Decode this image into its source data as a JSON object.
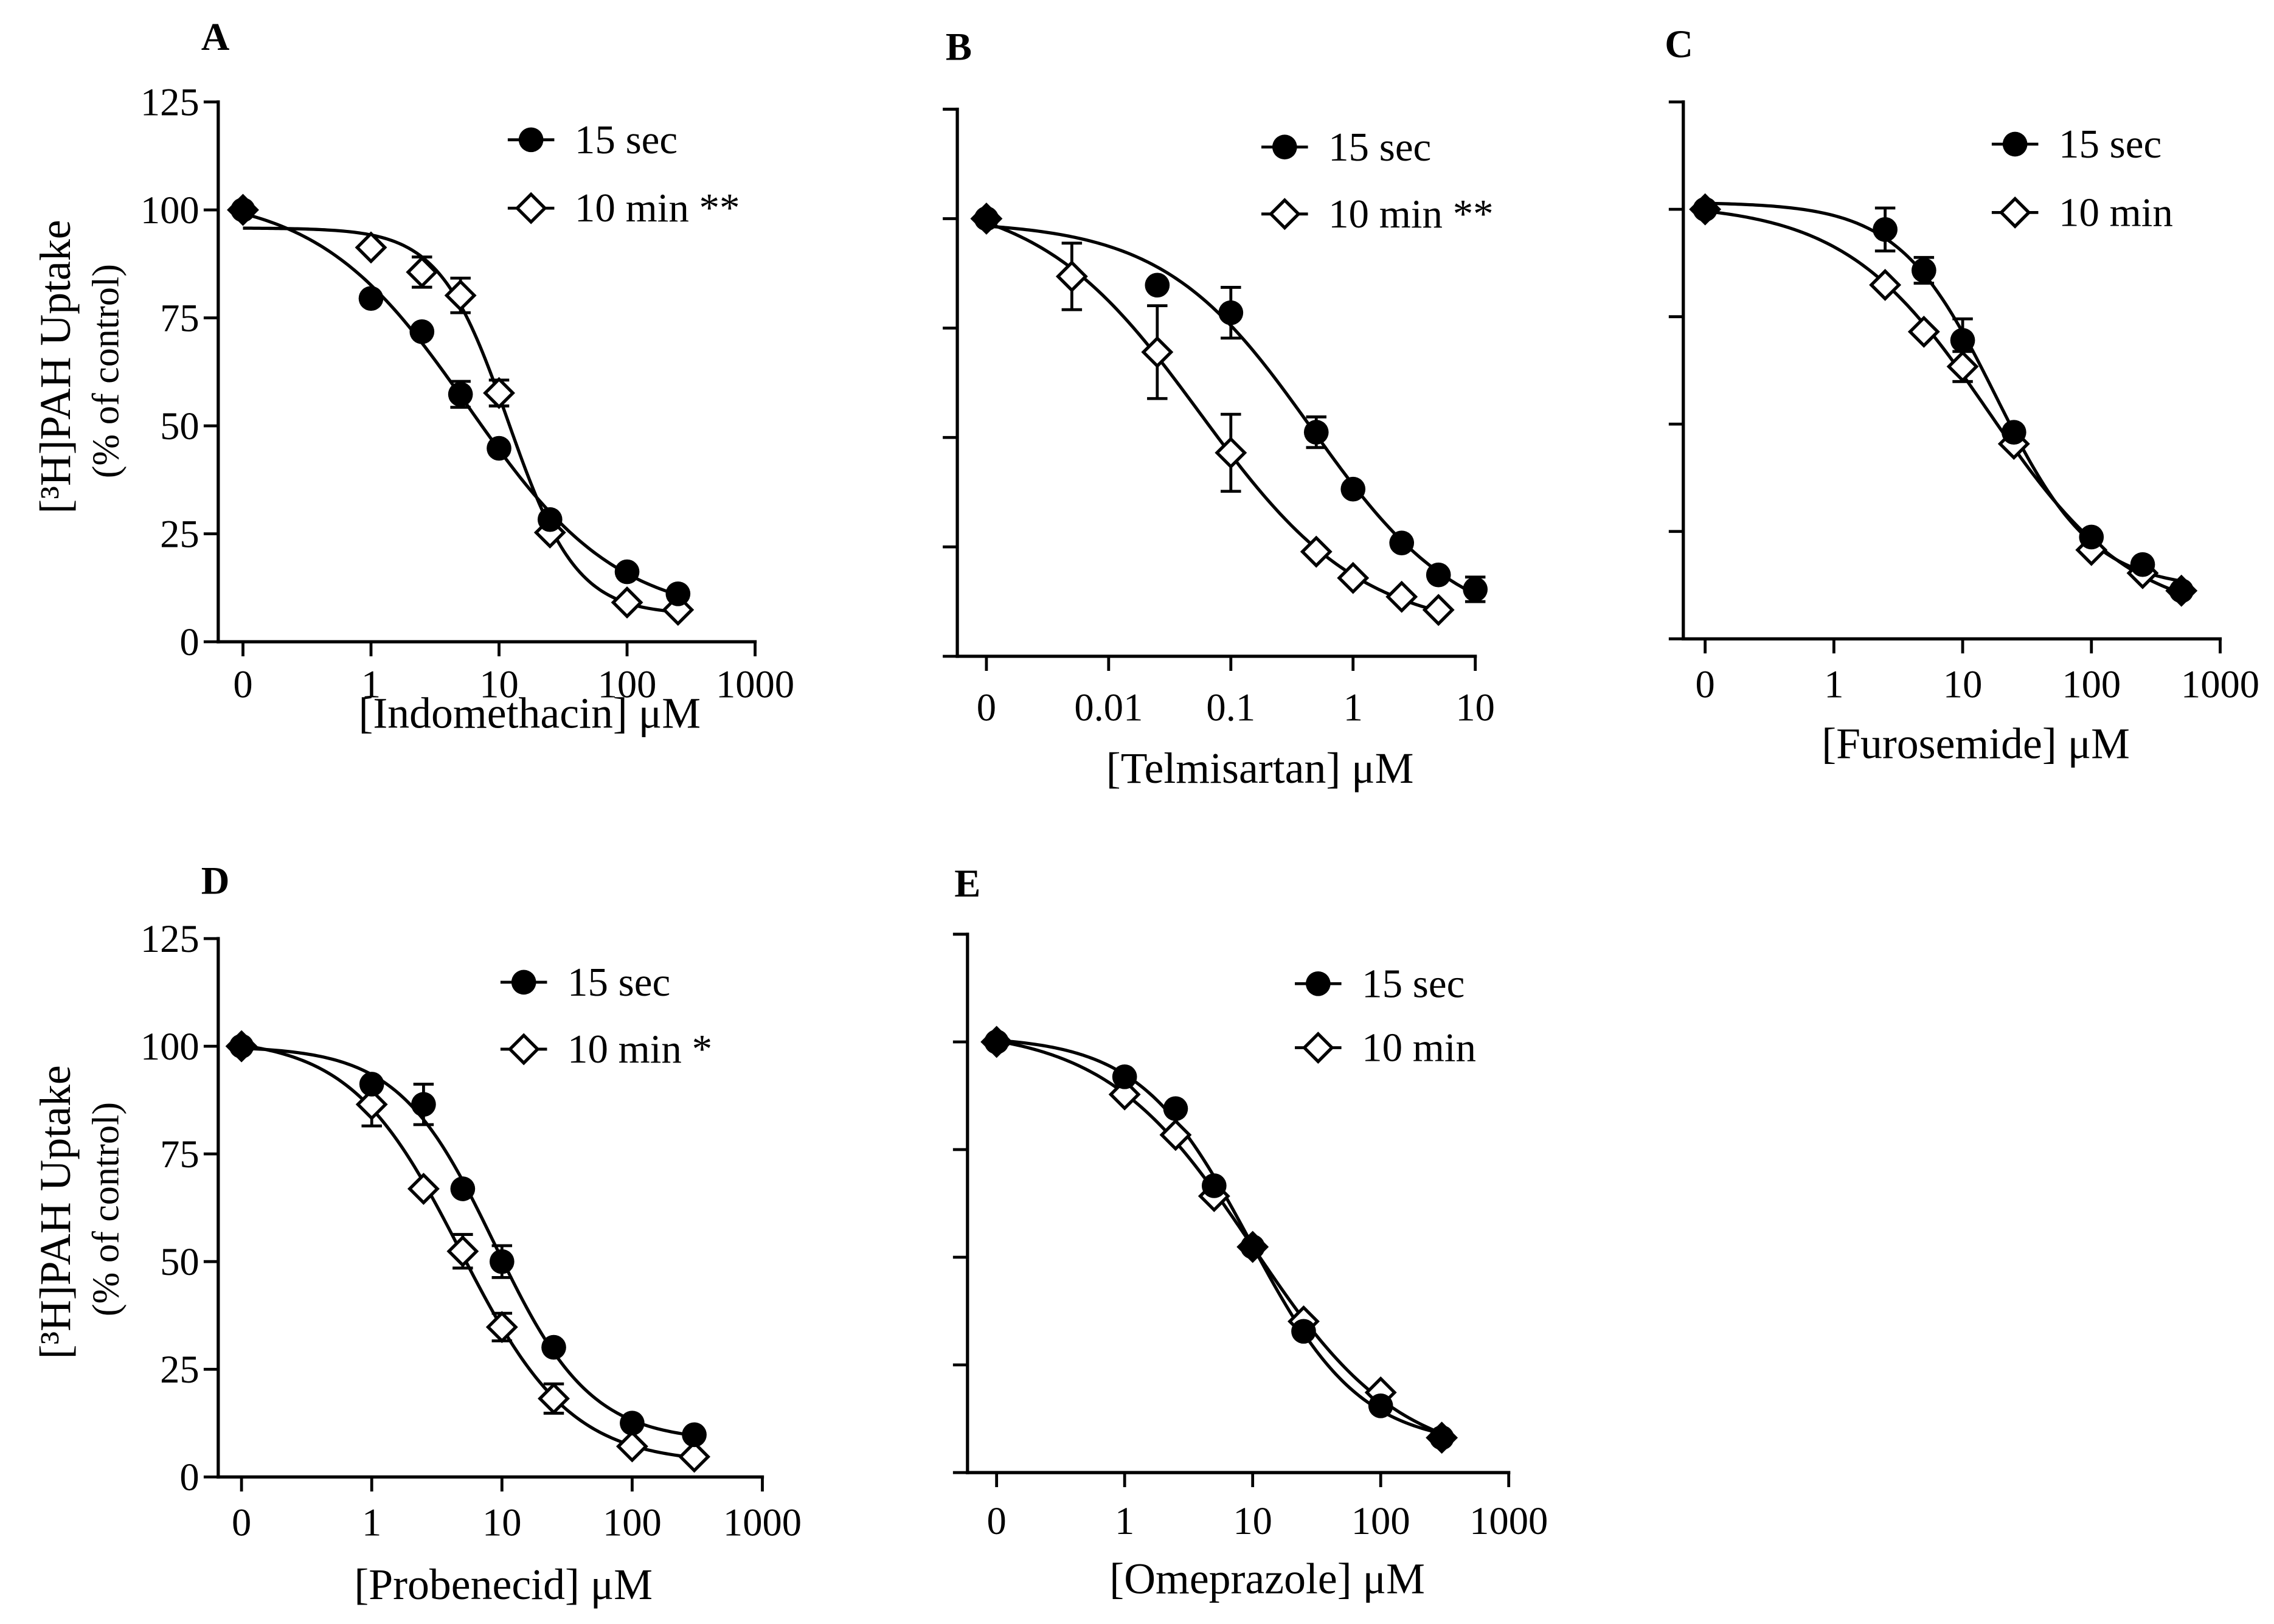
{
  "chart_data": [
    {
      "panel": "A",
      "type": "scatter",
      "xlabel": "[Indomethacin] μM",
      "ylabel": "[³H]PAH Uptake",
      "ylabel_sub": "(% of control)",
      "xscale": "log",
      "xticks": [
        0,
        1,
        10,
        100,
        1000
      ],
      "xticklabels": [
        "0",
        "1",
        "10",
        "100",
        "1000"
      ],
      "yticks": [
        0,
        25,
        50,
        75,
        100,
        125
      ],
      "yticklabels": [
        "0",
        "25",
        "50",
        "75",
        "100",
        "125"
      ],
      "ylim": [
        0,
        125
      ],
      "grid": false,
      "legend": "top-right",
      "series": [
        {
          "name": "15 sec",
          "marker": "filled-circle",
          "color": "#000000",
          "x": [
            0,
            1,
            2.5,
            5,
            10,
            25,
            100,
            250
          ],
          "y": [
            100,
            79.5,
            71.8,
            57.3,
            44.8,
            28.3,
            16.2,
            11.1
          ],
          "error": [
            0,
            0,
            0,
            3,
            0,
            0,
            0,
            0
          ]
        },
        {
          "name": "10 min **",
          "marker": "open-diamond",
          "color": "#000000",
          "x": [
            0,
            1,
            2.5,
            5,
            10,
            25,
            100,
            250
          ],
          "y": [
            100,
            91.3,
            85.6,
            80.2,
            57.6,
            25.3,
            9.1,
            7.4
          ],
          "error": [
            0,
            0,
            3.5,
            4,
            3,
            0,
            0,
            0
          ]
        }
      ]
    },
    {
      "panel": "B",
      "type": "scatter",
      "xlabel": "[Telmisartan] μM",
      "xscale": "log",
      "xticks": [
        0,
        0.01,
        0.1,
        1,
        10
      ],
      "xticklabels": [
        "0",
        "0.01",
        "0.1",
        "1",
        "10"
      ],
      "yticks": [
        0,
        25,
        50,
        75,
        100,
        125
      ],
      "yticklabels": [],
      "ylim": [
        0,
        125
      ],
      "grid": false,
      "legend": "top-right",
      "series": [
        {
          "name": "15 sec",
          "marker": "filled-circle",
          "color": "#000000",
          "x": [
            0,
            0.025,
            0.1,
            0.5,
            1,
            2.5,
            5,
            10
          ],
          "y": [
            100,
            84.8,
            78.5,
            51.2,
            38.2,
            25.9,
            18.6,
            15.3
          ],
          "error": [
            0,
            0,
            5.8,
            3.5,
            0,
            0,
            0,
            2.8
          ]
        },
        {
          "name": "10 min **",
          "marker": "open-diamond",
          "color": "#000000",
          "x": [
            0,
            0.005,
            0.025,
            0.1,
            0.5,
            1,
            2.5,
            5
          ],
          "y": [
            100,
            86.8,
            69.5,
            46.5,
            23.9,
            17.9,
            13.6,
            10.6
          ],
          "error": [
            0,
            7.6,
            10.6,
            8.8,
            0,
            0,
            0,
            0
          ]
        }
      ]
    },
    {
      "panel": "C",
      "type": "scatter",
      "xlabel": "[Furosemide] μM",
      "xscale": "log",
      "xticks": [
        0,
        1,
        10,
        100,
        1000
      ],
      "xticklabels": [
        "0",
        "1",
        "10",
        "100",
        "1000"
      ],
      "yticks": [
        0,
        25,
        50,
        75,
        100,
        125
      ],
      "yticklabels": [],
      "ylim": [
        0,
        125
      ],
      "grid": false,
      "legend": "top-right",
      "series": [
        {
          "name": "15 sec",
          "marker": "filled-circle",
          "color": "#000000",
          "x": [
            0,
            2.5,
            5,
            10,
            25,
            100,
            250,
            500
          ],
          "y": [
            100,
            95.3,
            85.8,
            69.5,
            48.1,
            23.7,
            17.3,
            11.2
          ],
          "error": [
            0,
            5,
            3,
            5,
            0,
            0,
            0,
            0
          ]
        },
        {
          "name": "10 min",
          "marker": "open-diamond",
          "color": "#000000",
          "x": [
            0,
            2.5,
            5,
            10,
            25,
            100,
            250,
            500
          ],
          "y": [
            100,
            82.4,
            71.5,
            63.4,
            45.4,
            20.7,
            15.3,
            11.2
          ],
          "error": [
            0,
            0,
            0,
            3.5,
            0,
            0,
            0,
            0
          ]
        }
      ]
    },
    {
      "panel": "D",
      "type": "scatter",
      "xlabel": "[Probenecid] μM",
      "ylabel": "[³H]PAH Uptake",
      "ylabel_sub": "(% of control)",
      "xscale": "log",
      "xticks": [
        0,
        1,
        10,
        100,
        1000
      ],
      "xticklabels": [
        "0",
        "1",
        "10",
        "100",
        "1000"
      ],
      "yticks": [
        0,
        25,
        50,
        75,
        100,
        125
      ],
      "yticklabels": [
        "0",
        "25",
        "50",
        "75",
        "100",
        "125"
      ],
      "ylim": [
        0,
        125
      ],
      "grid": false,
      "legend": "top-right",
      "series": [
        {
          "name": "15 sec",
          "marker": "filled-circle",
          "color": "#000000",
          "x": [
            0,
            1,
            2.5,
            5,
            10,
            25,
            100,
            300
          ],
          "y": [
            100,
            91.2,
            86.5,
            66.9,
            50,
            30.1,
            12.5,
            9.8
          ],
          "error": [
            0,
            0,
            4.7,
            0,
            3.7,
            0,
            0,
            0
          ]
        },
        {
          "name": "10 min *",
          "marker": "open-diamond",
          "color": "#000000",
          "x": [
            0,
            1,
            2.5,
            5,
            10,
            25,
            100,
            300
          ],
          "y": [
            100,
            86.5,
            66.9,
            52.4,
            34.8,
            18.2,
            7.1,
            4.7
          ],
          "error": [
            0,
            5,
            0,
            3.9,
            3.2,
            3.4,
            0,
            0
          ]
        }
      ]
    },
    {
      "panel": "E",
      "type": "scatter",
      "xlabel": "[Omeprazole] μM",
      "xscale": "log",
      "xticks": [
        0,
        1,
        10,
        100,
        1000
      ],
      "xticklabels": [
        "0",
        "1",
        "10",
        "100",
        "1000"
      ],
      "yticks": [
        0,
        25,
        50,
        75,
        100,
        125
      ],
      "yticklabels": [],
      "ylim": [
        0,
        125
      ],
      "grid": false,
      "legend": "top-right",
      "series": [
        {
          "name": "15 sec",
          "marker": "filled-circle",
          "color": "#000000",
          "x": [
            0,
            1,
            2.5,
            5,
            10,
            25,
            100,
            300
          ],
          "y": [
            100,
            91.9,
            84.5,
            66.6,
            52.4,
            32.8,
            15.5,
            8.1
          ],
          "error": [
            0,
            0,
            0,
            0,
            0,
            0,
            0,
            0
          ]
        },
        {
          "name": "10 min",
          "marker": "open-diamond",
          "color": "#000000",
          "x": [
            0,
            1,
            2.5,
            5,
            10,
            25,
            100,
            300
          ],
          "y": [
            100,
            87.8,
            78.4,
            64.2,
            52.4,
            35.1,
            18.6,
            8.1
          ],
          "error": [
            0,
            0,
            0,
            0,
            0,
            0,
            0,
            0
          ]
        }
      ]
    }
  ]
}
